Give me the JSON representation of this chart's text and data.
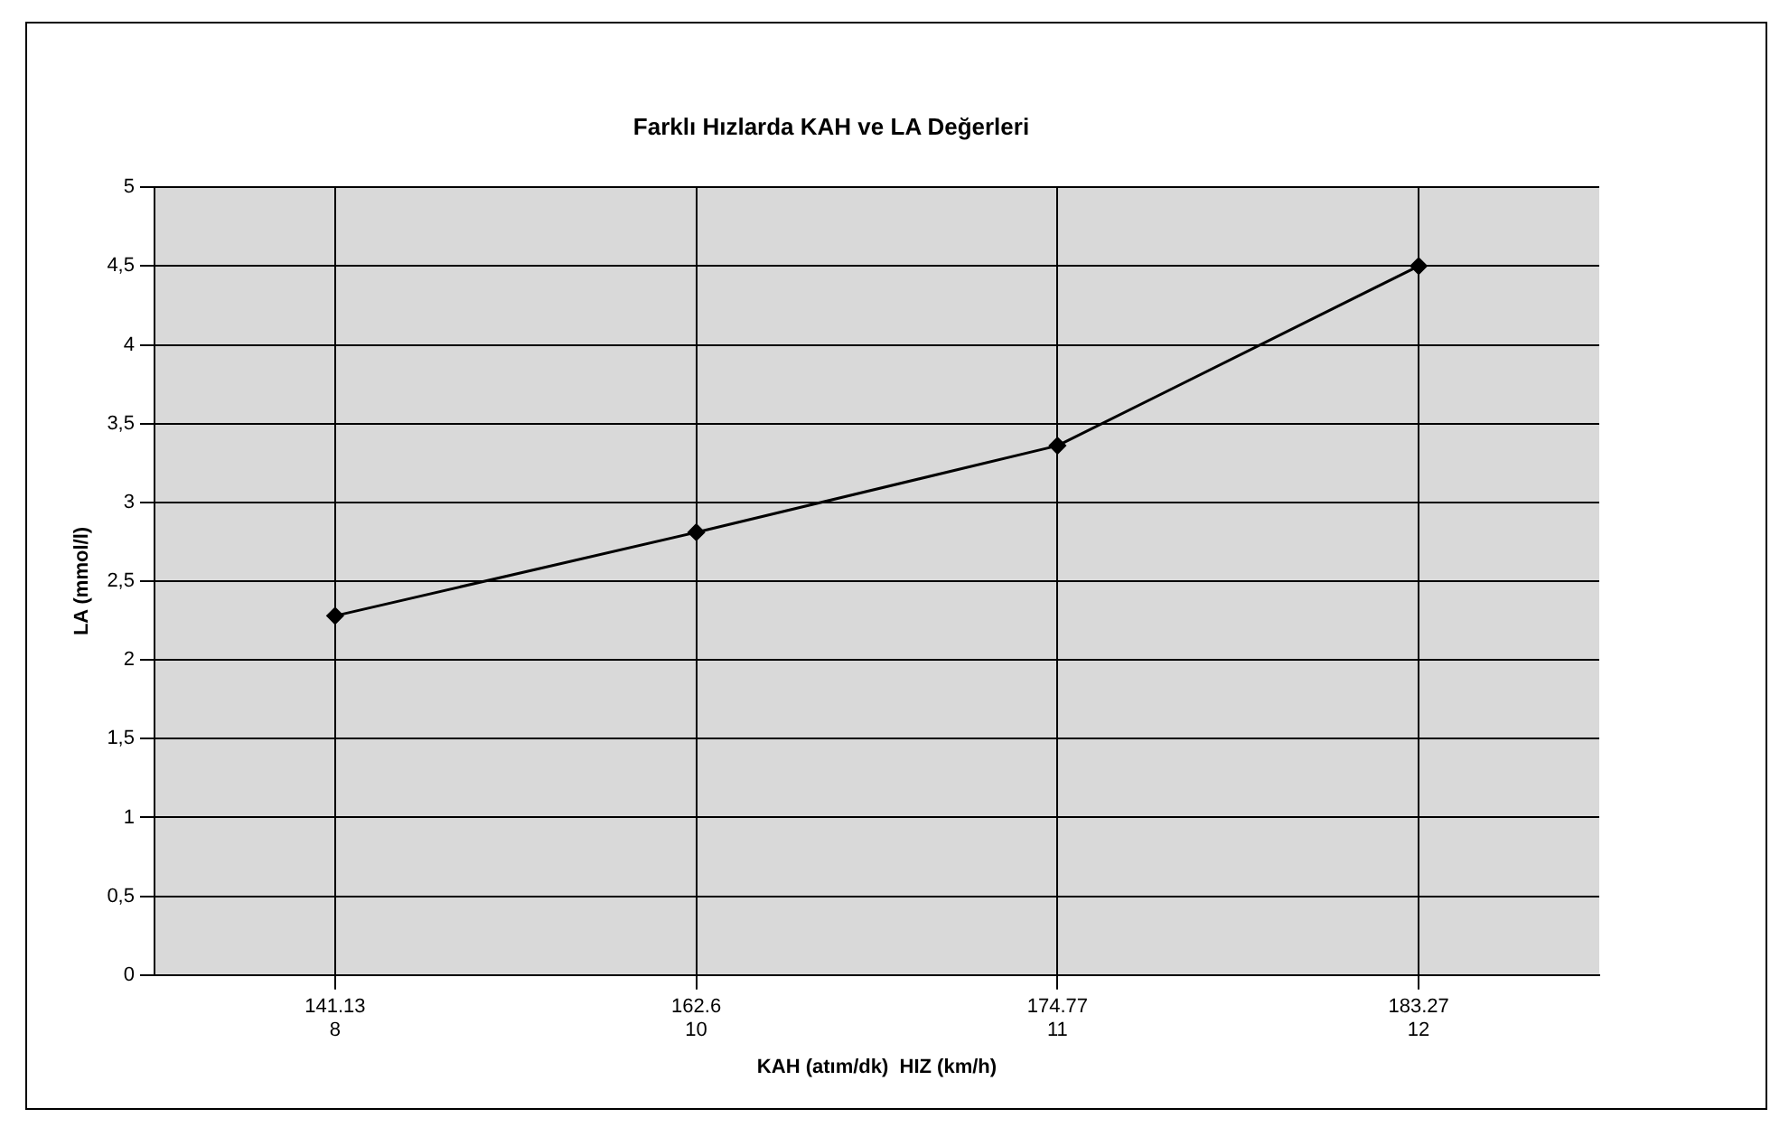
{
  "chart_data": {
    "type": "line",
    "title": "Farklı Hızlarda KAH ve LA Değerleri",
    "xlabel": "KAH (atım/dk)  HIZ (km/h)",
    "ylabel": "LA (mmol/l)",
    "categories": [
      "141.13\n8",
      "162.6\n10",
      "174.77\n11",
      "183.27\n12"
    ],
    "series": [
      {
        "color": "#000000",
        "values": [
          2.28,
          2.81,
          3.36,
          4.5
        ]
      }
    ],
    "ylim": [
      0,
      5
    ],
    "yticks": [
      0,
      {
        "value": 0.5,
        "label": "0,5"
      },
      1,
      {
        "value": 1.5,
        "label": "1,5"
      },
      2,
      {
        "value": 2.5,
        "label": "2,5"
      },
      3,
      {
        "value": 3.5,
        "label": "3,5"
      },
      4,
      {
        "value": 4.5,
        "label": "4,5"
      },
      5
    ],
    "grid": true,
    "legend": false,
    "marker": "diamond",
    "line_style": "solid"
  }
}
